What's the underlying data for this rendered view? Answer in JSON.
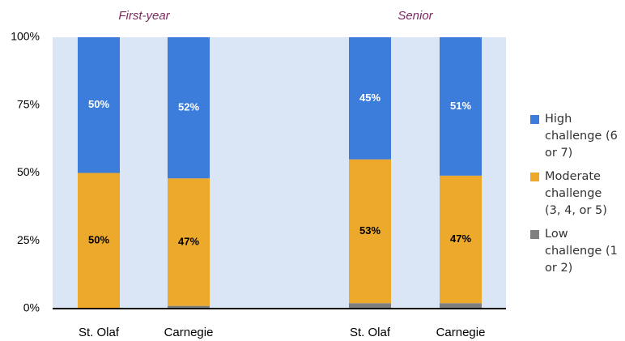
{
  "chart_data": {
    "type": "stacked_bar",
    "categories": [
      "St. Olaf",
      "Carnegie",
      "St. Olaf",
      "Carnegie"
    ],
    "group_labels": [
      "First-year",
      "Senior"
    ],
    "series": [
      {
        "name": "Low challenge (1 or 2)",
        "color": "#7f7f7f",
        "values": [
          0,
          1,
          2,
          2
        ]
      },
      {
        "name": "Moderate challenge (3, 4, or 5)",
        "color": "#eda92b",
        "values": [
          50,
          47,
          53,
          47
        ],
        "value_labels": [
          "50%",
          "47%",
          "53%",
          "47%"
        ]
      },
      {
        "name": "High challenge (6 or 7)",
        "color": "#3c7ddc",
        "values": [
          50,
          52,
          45,
          51
        ],
        "value_labels": [
          "50%",
          "52%",
          "45%",
          "51%"
        ]
      }
    ],
    "ylim": [
      0,
      100
    ],
    "yticks": [
      {
        "value": 0,
        "label": "0%"
      },
      {
        "value": 25,
        "label": "25%"
      },
      {
        "value": 50,
        "label": "50%"
      },
      {
        "value": 75,
        "label": "75%"
      },
      {
        "value": 100,
        "label": "100%"
      }
    ],
    "legend": "right"
  }
}
